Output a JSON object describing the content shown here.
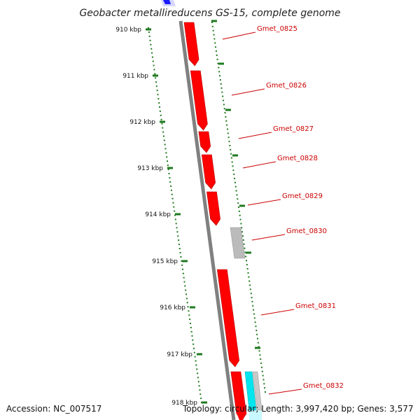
{
  "title": "Geobacter metallireducens GS-15, complete genome",
  "tick_unit": "kbp",
  "ticks": [
    910,
    911,
    912,
    913,
    914,
    915,
    916,
    917,
    918
  ],
  "genes": [
    {
      "label": "Gmet_0825",
      "color": "#ff0000"
    },
    {
      "label": "Gmet_0826",
      "color": "#ff0000"
    },
    {
      "label": "Gmet_0827",
      "color": "#ff0000"
    },
    {
      "label": "Gmet_0828",
      "color": "#ff0000"
    },
    {
      "label": "Gmet_0829",
      "color": "#ff0000"
    },
    {
      "label": "Gmet_0830",
      "color": "#bbbbbb"
    },
    {
      "label": "Gmet_0831",
      "color": "#ff0000"
    },
    {
      "label": "Gmet_0832",
      "color": "#ff0000"
    }
  ],
  "footer": {
    "accession": "Accession: NC_007517",
    "summary": "Topology: circular; Length: 3,997,420 bp; Genes: 3,577"
  },
  "colors": {
    "backbone": "#808080",
    "tick_marks": "#1f7a1f",
    "label_text": "#cc0000",
    "extra_feature_cyan": "#00e5ee",
    "top_marker_blue": "#1a1aff"
  }
}
